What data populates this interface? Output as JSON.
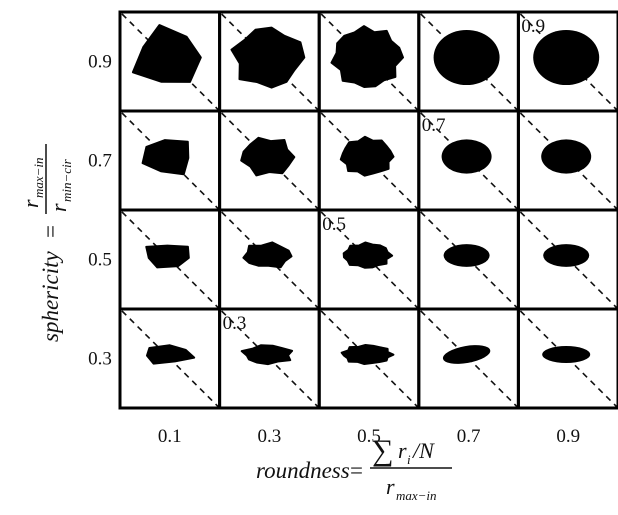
{
  "y_axis": {
    "label": "sphericity",
    "equals": "=",
    "numerator": {
      "symbol": "r",
      "subscript": "max−in"
    },
    "denominator": {
      "symbol": "r",
      "subscript": "min−cir"
    },
    "ticks": [
      "0.9",
      "0.7",
      "0.5",
      "0.3"
    ]
  },
  "x_axis": {
    "label": "roundness",
    "equals": "=",
    "numerator": {
      "sum": "∑",
      "symbol": "r",
      "subscript": "i",
      "rest": "/N"
    },
    "denominator": {
      "symbol": "r",
      "subscript": "max−in"
    },
    "ticks": [
      "0.1",
      "0.3",
      "0.5",
      "0.7",
      "0.9"
    ]
  },
  "diagonal_labels": [
    "0.9",
    "0.7",
    "0.5",
    "0.3"
  ]
}
